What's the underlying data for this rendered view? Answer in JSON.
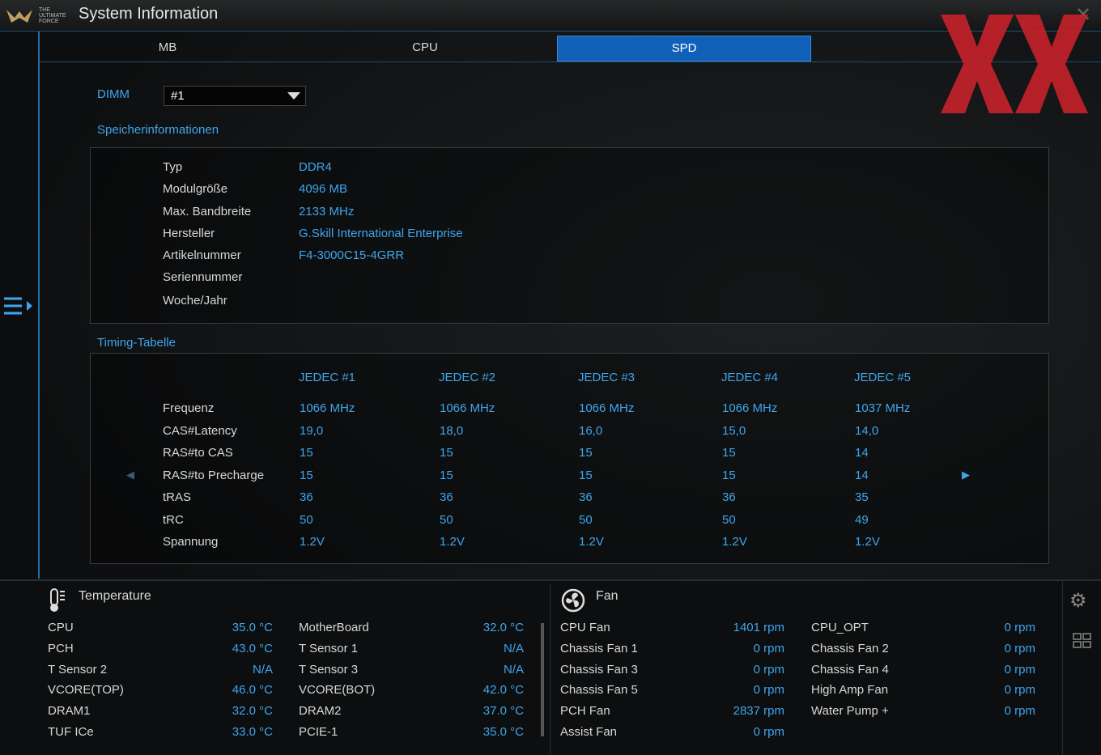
{
  "window": {
    "brand": "THE ULTIMATE FORCE",
    "title": "System Information"
  },
  "tabs": [
    "MB",
    "CPU",
    "SPD"
  ],
  "active_tab": 2,
  "dimm": {
    "label": "DIMM",
    "value": "#1"
  },
  "memory_info": {
    "title": "Speicherinformationen",
    "rows": [
      {
        "label": "Typ",
        "value": "DDR4"
      },
      {
        "label": "Modulgröße",
        "value": "4096 MB"
      },
      {
        "label": "Max. Bandbreite",
        "value": "2133 MHz"
      },
      {
        "label": "Hersteller",
        "value": "G.Skill International Enterprise"
      },
      {
        "label": "Artikelnummer",
        "value": "F4-3000C15-4GRR"
      },
      {
        "label": "Seriennummer"
      },
      {
        "label": "Woche/Jahr"
      }
    ]
  },
  "timing": {
    "title": "Timing-Tabelle",
    "columns": [
      "JEDEC #1",
      "JEDEC #2",
      "JEDEC #3",
      "JEDEC #4",
      "JEDEC #5"
    ],
    "rows": [
      {
        "label": "Frequenz",
        "values": [
          "1066 MHz",
          "1066 MHz",
          "1066 MHz",
          "1066 MHz",
          "1037 MHz"
        ]
      },
      {
        "label": "CAS#Latency",
        "values": [
          "19,0",
          "18,0",
          "16,0",
          "15,0",
          "14,0"
        ]
      },
      {
        "label": "RAS#to CAS",
        "values": [
          "15",
          "15",
          "15",
          "15",
          "14"
        ]
      },
      {
        "label": "RAS#to Precharge",
        "values": [
          "15",
          "15",
          "15",
          "15",
          "14"
        ]
      },
      {
        "label": "tRAS",
        "values": [
          "36",
          "36",
          "36",
          "36",
          "35"
        ]
      },
      {
        "label": "tRC",
        "values": [
          "50",
          "50",
          "50",
          "50",
          "49"
        ]
      },
      {
        "label": "Spannung",
        "values": [
          "1.2V",
          "1.2V",
          "1.2V",
          "1.2V",
          "1.2V"
        ]
      }
    ]
  },
  "temperature": {
    "title": "Temperature",
    "columns": [
      [
        {
          "name": "CPU",
          "value": "35.0 °C"
        },
        {
          "name": "PCH",
          "value": "43.0 °C"
        },
        {
          "name": "T Sensor 2",
          "value": "N/A"
        },
        {
          "name": "VCORE(TOP)",
          "value": "46.0 °C"
        },
        {
          "name": "DRAM1",
          "value": "32.0 °C"
        },
        {
          "name": "TUF ICe",
          "value": "33.0 °C"
        }
      ],
      [
        {
          "name": "MotherBoard",
          "value": "32.0 °C"
        },
        {
          "name": "T Sensor 1",
          "value": "N/A"
        },
        {
          "name": "T Sensor 3",
          "value": "N/A"
        },
        {
          "name": "VCORE(BOT)",
          "value": "42.0 °C"
        },
        {
          "name": "DRAM2",
          "value": "37.0 °C"
        },
        {
          "name": "PCIE-1",
          "value": "35.0 °C"
        }
      ]
    ]
  },
  "fan": {
    "title": "Fan",
    "columns": [
      [
        {
          "name": "CPU Fan",
          "value": "1401 rpm"
        },
        {
          "name": "Chassis Fan 1",
          "value": "0 rpm"
        },
        {
          "name": "Chassis Fan 3",
          "value": "0 rpm"
        },
        {
          "name": "Chassis Fan 5",
          "value": "0 rpm"
        },
        {
          "name": "PCH Fan",
          "value": "2837 rpm"
        },
        {
          "name": "Assist Fan",
          "value": "0 rpm"
        }
      ],
      [
        {
          "name": "CPU_OPT",
          "value": "0 rpm"
        },
        {
          "name": "Chassis Fan 2",
          "value": "0 rpm"
        },
        {
          "name": "Chassis Fan 4",
          "value": "0 rpm"
        },
        {
          "name": "High Amp Fan",
          "value": "0 rpm"
        },
        {
          "name": "Water Pump +",
          "value": "0 rpm"
        }
      ]
    ]
  }
}
